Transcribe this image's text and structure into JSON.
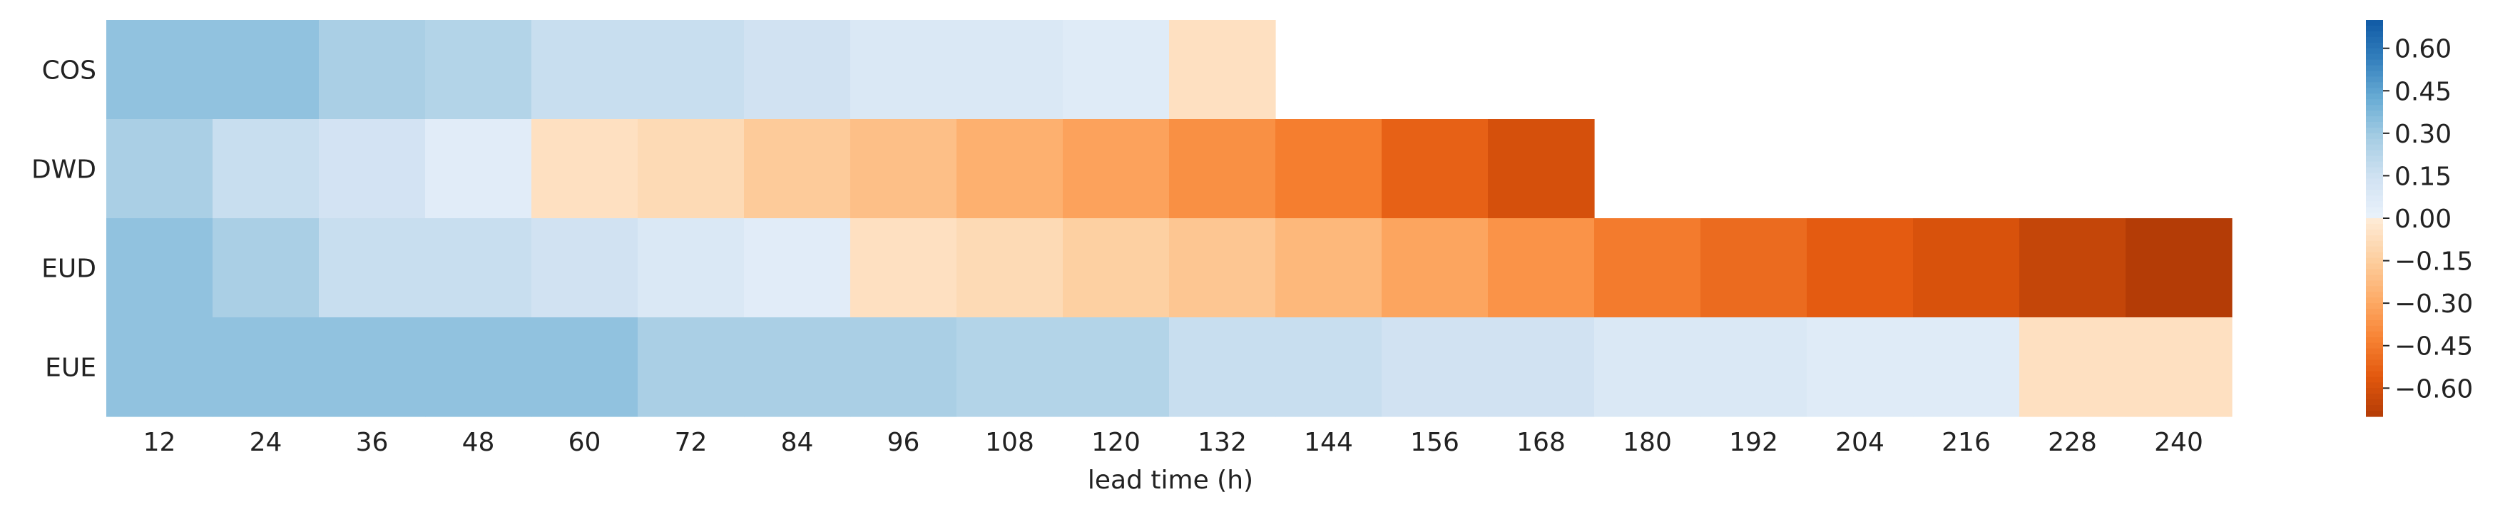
{
  "chart_data": {
    "type": "heatmap",
    "title": "",
    "xlabel": "lead time (h)",
    "ylabel": "",
    "x_categories": [
      "12",
      "24",
      "36",
      "48",
      "60",
      "72",
      "84",
      "96",
      "108",
      "120",
      "132",
      "144",
      "156",
      "168",
      "180",
      "192",
      "204",
      "216",
      "228",
      "240"
    ],
    "y_categories": [
      "COS",
      "DWD",
      "EUD",
      "EUE"
    ],
    "values": [
      [
        0.33,
        0.33,
        0.27,
        0.24,
        0.17,
        0.17,
        0.14,
        0.09,
        0.09,
        0.06,
        -0.06,
        null,
        null,
        null,
        null,
        null,
        null,
        null,
        null,
        null
      ],
      [
        0.27,
        0.17,
        0.13,
        0.05,
        -0.06,
        -0.09,
        -0.16,
        -0.21,
        -0.27,
        -0.32,
        -0.38,
        -0.44,
        -0.53,
        -0.6,
        null,
        null,
        null,
        null,
        null,
        null
      ],
      [
        0.33,
        0.27,
        0.17,
        0.17,
        0.14,
        0.09,
        0.05,
        -0.06,
        -0.09,
        -0.14,
        -0.18,
        -0.24,
        -0.31,
        -0.37,
        -0.45,
        -0.5,
        -0.55,
        -0.59,
        -0.65,
        -0.7
      ],
      [
        0.33,
        0.33,
        0.33,
        0.33,
        0.33,
        0.27,
        0.27,
        0.27,
        0.24,
        0.24,
        0.17,
        0.17,
        0.14,
        0.14,
        0.09,
        0.09,
        0.06,
        0.06,
        -0.06,
        -0.06
      ]
    ],
    "colorbar": {
      "min": -0.7,
      "max": 0.7,
      "ticks": [
        0.6,
        0.45,
        0.3,
        0.15,
        0.0,
        -0.15,
        -0.3,
        -0.45,
        -0.6
      ],
      "tick_labels": [
        "0.60",
        "0.45",
        "0.30",
        "0.15",
        "0.00",
        "−0.15",
        "−0.30",
        "−0.45",
        "−0.60"
      ]
    },
    "colors": {
      "positive_scale": "Blues",
      "negative_scale": "Oranges",
      "background": "#ffffff",
      "text": "#222222"
    },
    "grid": false
  }
}
